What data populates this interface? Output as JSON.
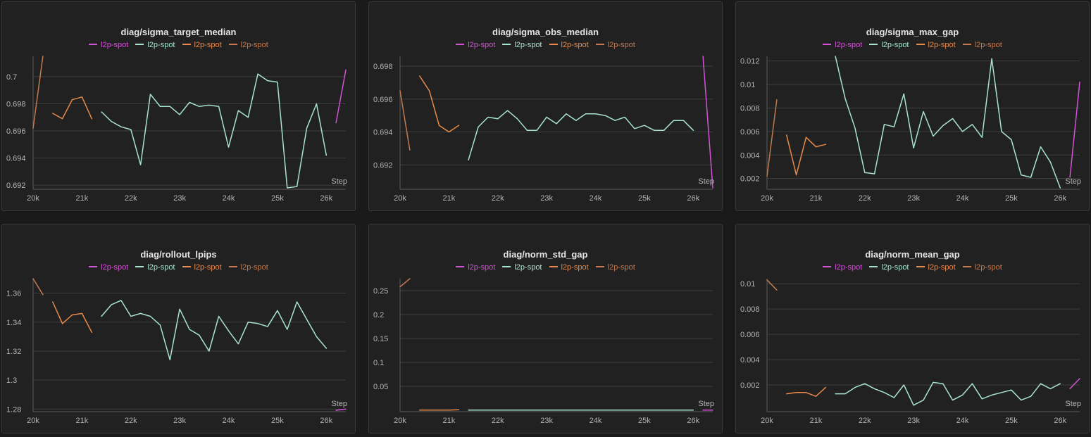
{
  "colors": {
    "magenta": "#d254d6",
    "mint": "#a8e3cf",
    "orange": "#e88a4b",
    "brown": "#c47a50",
    "background": "#212121",
    "grid": "#3e3e3e"
  },
  "chart_data": [
    {
      "type": "line",
      "title": "diag/sigma_target_median",
      "xlabel": "Step",
      "xlim": [
        20000,
        26400
      ],
      "ylim": [
        0.6918,
        0.7015
      ],
      "xticks": [
        20000,
        21000,
        22000,
        23000,
        24000,
        25000,
        26000
      ],
      "xtick_labels": [
        "20k",
        "21k",
        "22k",
        "23k",
        "24k",
        "25k",
        "26k"
      ],
      "yticks": [
        0.692,
        0.694,
        0.696,
        0.698,
        0.7
      ],
      "ytick_labels": [
        "0.692",
        "0.694",
        "0.696",
        "0.698",
        "0.7"
      ],
      "legend": [
        {
          "label": "l2p-spot",
          "color": "#d254d6"
        },
        {
          "label": "l2p-spot",
          "color": "#a8e3cf"
        },
        {
          "label": "l2p-spot",
          "color": "#e88a4b"
        },
        {
          "label": "l2p-spot",
          "color": "#c47a50"
        }
      ],
      "series": [
        {
          "color": "#c47a50",
          "x": [
            20000,
            20200
          ],
          "y": [
            0.6962,
            0.7015
          ]
        },
        {
          "color": "#e88a4b",
          "x": [
            20400,
            20600,
            20800,
            21000,
            21200
          ],
          "y": [
            0.6973,
            0.6969,
            0.6983,
            0.6985,
            0.6969
          ]
        },
        {
          "color": "#a8e3cf",
          "x": [
            21400,
            21600,
            21800,
            22000,
            22200,
            22400,
            22600,
            22800,
            23000,
            23200,
            23400,
            23600,
            23800,
            24000,
            24200,
            24400,
            24600,
            24800,
            25000,
            25200,
            25400,
            25600,
            25800,
            26000
          ],
          "y": [
            0.6974,
            0.6967,
            0.6963,
            0.6961,
            0.6935,
            0.6987,
            0.6978,
            0.6978,
            0.6972,
            0.6981,
            0.6978,
            0.6979,
            0.6978,
            0.6948,
            0.6975,
            0.697,
            0.7002,
            0.6997,
            0.6996,
            0.6918,
            0.6919,
            0.6962,
            0.698,
            0.6942
          ]
        },
        {
          "color": "#d254d6",
          "x": [
            26200,
            26400
          ],
          "y": [
            0.6966,
            0.7005
          ]
        }
      ]
    },
    {
      "type": "line",
      "title": "diag/sigma_obs_median",
      "xlabel": "Step",
      "xlim": [
        20000,
        26400
      ],
      "ylim": [
        0.6906,
        0.6986
      ],
      "xticks": [
        20000,
        21000,
        22000,
        23000,
        24000,
        25000,
        26000
      ],
      "xtick_labels": [
        "20k",
        "21k",
        "22k",
        "23k",
        "24k",
        "25k",
        "26k"
      ],
      "yticks": [
        0.692,
        0.694,
        0.696,
        0.698
      ],
      "ytick_labels": [
        "0.692",
        "0.694",
        "0.696",
        "0.698"
      ],
      "legend": [
        {
          "label": "l2p-spot",
          "color": "#d254d6"
        },
        {
          "label": "l2p-spot",
          "color": "#a8e3cf"
        },
        {
          "label": "l2p-spot",
          "color": "#e88a4b"
        },
        {
          "label": "l2p-spot",
          "color": "#c47a50"
        }
      ],
      "series": [
        {
          "color": "#c47a50",
          "x": [
            20000,
            20200
          ],
          "y": [
            0.6965,
            0.6929
          ]
        },
        {
          "color": "#e88a4b",
          "x": [
            20400,
            20600,
            20800,
            21000,
            21200
          ],
          "y": [
            0.6974,
            0.6965,
            0.6944,
            0.694,
            0.6944
          ]
        },
        {
          "color": "#a8e3cf",
          "x": [
            21400,
            21600,
            21800,
            22000,
            22200,
            22400,
            22600,
            22800,
            23000,
            23200,
            23400,
            23600,
            23800,
            24000,
            24200,
            24400,
            24600,
            24800,
            25000,
            25200,
            25400,
            25600,
            25800,
            26000
          ],
          "y": [
            0.6923,
            0.6943,
            0.6949,
            0.6948,
            0.6953,
            0.6948,
            0.6941,
            0.6941,
            0.6949,
            0.6945,
            0.6951,
            0.6947,
            0.6951,
            0.6951,
            0.695,
            0.6947,
            0.6949,
            0.6942,
            0.6944,
            0.6941,
            0.6941,
            0.6947,
            0.6947,
            0.6941
          ]
        },
        {
          "color": "#d254d6",
          "x": [
            26200,
            26400
          ],
          "y": [
            0.6986,
            0.6906
          ]
        }
      ]
    },
    {
      "type": "line",
      "title": "diag/sigma_max_gap",
      "xlabel": "Step",
      "xlim": [
        20000,
        26400
      ],
      "ylim": [
        0.0012,
        0.0124
      ],
      "xticks": [
        20000,
        21000,
        22000,
        23000,
        24000,
        25000,
        26000
      ],
      "xtick_labels": [
        "20k",
        "21k",
        "22k",
        "23k",
        "24k",
        "25k",
        "26k"
      ],
      "yticks": [
        0.002,
        0.004,
        0.006,
        0.008,
        0.01,
        0.012
      ],
      "ytick_labels": [
        "0.002",
        "0.004",
        "0.006",
        "0.008",
        "0.01",
        "0.012"
      ],
      "legend": [
        {
          "label": "l2p-spot",
          "color": "#d254d6"
        },
        {
          "label": "l2p-spot",
          "color": "#a8e3cf"
        },
        {
          "label": "l2p-spot",
          "color": "#e88a4b"
        },
        {
          "label": "l2p-spot",
          "color": "#c47a50"
        }
      ],
      "series": [
        {
          "color": "#c47a50",
          "x": [
            20000,
            20200
          ],
          "y": [
            0.0022,
            0.0087
          ]
        },
        {
          "color": "#e88a4b",
          "x": [
            20400,
            20600,
            20800,
            21000,
            21200
          ],
          "y": [
            0.0057,
            0.0023,
            0.0055,
            0.0047,
            0.0049
          ]
        },
        {
          "color": "#a8e3cf",
          "x": [
            21400,
            21600,
            21800,
            22000,
            22200,
            22400,
            22600,
            22800,
            23000,
            23200,
            23400,
            23600,
            23800,
            24000,
            24200,
            24400,
            24600,
            24800,
            25000,
            25200,
            25400,
            25600,
            25800,
            26000
          ],
          "y": [
            0.0124,
            0.0088,
            0.0063,
            0.0025,
            0.0024,
            0.0066,
            0.0064,
            0.0092,
            0.0046,
            0.0077,
            0.0056,
            0.0065,
            0.0071,
            0.006,
            0.0066,
            0.0055,
            0.0122,
            0.006,
            0.0053,
            0.0023,
            0.0021,
            0.0047,
            0.0034,
            0.0012
          ]
        },
        {
          "color": "#d254d6",
          "x": [
            26200,
            26400
          ],
          "y": [
            0.0021,
            0.0102
          ]
        }
      ]
    },
    {
      "type": "line",
      "title": "diag/rollout_lpips",
      "xlabel": "Step",
      "xlim": [
        20000,
        26400
      ],
      "ylim": [
        1.2792,
        1.37
      ],
      "xticks": [
        20000,
        21000,
        22000,
        23000,
        24000,
        25000,
        26000
      ],
      "xtick_labels": [
        "20k",
        "21k",
        "22k",
        "23k",
        "24k",
        "25k",
        "26k"
      ],
      "yticks": [
        1.28,
        1.3,
        1.32,
        1.34,
        1.36
      ],
      "ytick_labels": [
        "1.28",
        "1.3",
        "1.32",
        "1.34",
        "1.36"
      ],
      "legend": [
        {
          "label": "l2p-spot",
          "color": "#d254d6"
        },
        {
          "label": "l2p-spot",
          "color": "#a8e3cf"
        },
        {
          "label": "l2p-spot",
          "color": "#e88a4b"
        },
        {
          "label": "l2p-spot",
          "color": "#c47a50"
        }
      ],
      "series": [
        {
          "color": "#c47a50",
          "x": [
            20000,
            20200
          ],
          "y": [
            1.37,
            1.359
          ]
        },
        {
          "color": "#e88a4b",
          "x": [
            20400,
            20600,
            20800,
            21000,
            21200
          ],
          "y": [
            1.354,
            1.339,
            1.345,
            1.346,
            1.333
          ]
        },
        {
          "color": "#a8e3cf",
          "x": [
            21400,
            21600,
            21800,
            22000,
            22200,
            22400,
            22600,
            22800,
            23000,
            23200,
            23400,
            23600,
            23800,
            24000,
            24200,
            24400,
            24600,
            24800,
            25000,
            25200,
            25400,
            25600,
            25800,
            26000
          ],
          "y": [
            1.344,
            1.352,
            1.355,
            1.344,
            1.346,
            1.344,
            1.338,
            1.314,
            1.349,
            1.335,
            1.331,
            1.32,
            1.344,
            1.334,
            1.325,
            1.34,
            1.339,
            1.337,
            1.348,
            1.335,
            1.354,
            1.342,
            1.33,
            1.322
          ]
        },
        {
          "color": "#d254d6",
          "x": [
            26200,
            26400
          ],
          "y": [
            1.2792,
            1.28
          ]
        }
      ]
    },
    {
      "type": "line",
      "title": "diag/norm_std_gap",
      "xlabel": "Step",
      "xlim": [
        20000,
        26400
      ],
      "ylim": [
        0.0,
        0.275
      ],
      "xticks": [
        20000,
        21000,
        22000,
        23000,
        24000,
        25000,
        26000
      ],
      "xtick_labels": [
        "20k",
        "21k",
        "22k",
        "23k",
        "24k",
        "25k",
        "26k"
      ],
      "yticks": [
        0.05,
        0.1,
        0.15,
        0.2,
        0.25
      ],
      "ytick_labels": [
        "0.05",
        "0.1",
        "0.15",
        "0.2",
        "0.25"
      ],
      "legend": [
        {
          "label": "l2p-spot",
          "color": "#d254d6"
        },
        {
          "label": "l2p-spot",
          "color": "#a8e3cf"
        },
        {
          "label": "l2p-spot",
          "color": "#e88a4b"
        },
        {
          "label": "l2p-spot",
          "color": "#c47a50"
        }
      ],
      "series": [
        {
          "color": "#c47a50",
          "x": [
            20000,
            20200
          ],
          "y": [
            0.258,
            0.275
          ]
        },
        {
          "color": "#e88a4b",
          "x": [
            20400,
            20600,
            20800,
            21000,
            21200
          ],
          "y": [
            0.0005,
            0.0005,
            0.0005,
            0.0005,
            0.001
          ]
        },
        {
          "color": "#a8e3cf",
          "x": [
            21400,
            21600,
            21800,
            22000,
            22200,
            22400,
            22600,
            22800,
            23000,
            23200,
            23400,
            23600,
            23800,
            24000,
            24200,
            24400,
            24600,
            24800,
            25000,
            25200,
            25400,
            25600,
            25800,
            26000
          ],
          "y": [
            0.0005,
            0.0005,
            0.0005,
            0.0005,
            0.0005,
            0.0005,
            0.0005,
            0.0005,
            0.0005,
            0.0005,
            0.0005,
            0.0005,
            0.0005,
            0.0005,
            0.0005,
            0.0005,
            0.0005,
            0.0005,
            0.0005,
            0.0005,
            0.0005,
            0.0005,
            0.0005,
            0.0005
          ]
        },
        {
          "color": "#d254d6",
          "x": [
            26200,
            26400
          ],
          "y": [
            0.0005,
            0.0005
          ]
        }
      ]
    },
    {
      "type": "line",
      "title": "diag/norm_mean_gap",
      "xlabel": "Step",
      "xlim": [
        20000,
        26400
      ],
      "ylim": [
        0.0,
        0.0104
      ],
      "xticks": [
        20000,
        21000,
        22000,
        23000,
        24000,
        25000,
        26000
      ],
      "xtick_labels": [
        "20k",
        "21k",
        "22k",
        "23k",
        "24k",
        "25k",
        "26k"
      ],
      "yticks": [
        0.002,
        0.004,
        0.006,
        0.008,
        0.01
      ],
      "ytick_labels": [
        "0.002",
        "0.004",
        "0.006",
        "0.008",
        "0.01"
      ],
      "legend": [
        {
          "label": "l2p-spot",
          "color": "#d254d6"
        },
        {
          "label": "l2p-spot",
          "color": "#a8e3cf"
        },
        {
          "label": "l2p-spot",
          "color": "#e88a4b"
        },
        {
          "label": "l2p-spot",
          "color": "#c47a50"
        }
      ],
      "series": [
        {
          "color": "#c47a50",
          "x": [
            20000,
            20200
          ],
          "y": [
            0.0103,
            0.0095
          ]
        },
        {
          "color": "#e88a4b",
          "x": [
            20400,
            20600,
            20800,
            21000,
            21200
          ],
          "y": [
            0.0013,
            0.0014,
            0.0014,
            0.0011,
            0.0018
          ]
        },
        {
          "color": "#a8e3cf",
          "x": [
            21400,
            21600,
            21800,
            22000,
            22200,
            22400,
            22600,
            22800,
            23000,
            23200,
            23400,
            23600,
            23800,
            24000,
            24200,
            24400,
            24600,
            24800,
            25000,
            25200,
            25400,
            25600,
            25800,
            26000
          ],
          "y": [
            0.0013,
            0.0013,
            0.0018,
            0.0021,
            0.0017,
            0.0014,
            0.001,
            0.002,
            0.0004,
            0.0008,
            0.0022,
            0.0021,
            0.0008,
            0.0012,
            0.0021,
            0.0009,
            0.0012,
            0.0014,
            0.0016,
            0.0008,
            0.0011,
            0.0021,
            0.0017,
            0.0021
          ]
        },
        {
          "color": "#d254d6",
          "x": [
            26200,
            26400
          ],
          "y": [
            0.0017,
            0.0025
          ]
        }
      ]
    }
  ]
}
